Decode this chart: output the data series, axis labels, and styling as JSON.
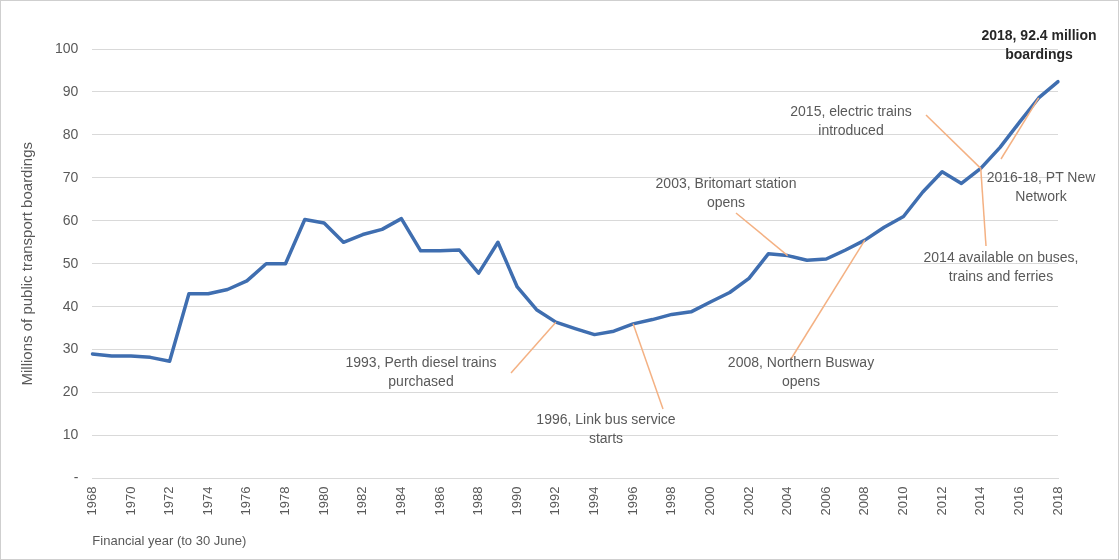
{
  "chart_data": {
    "type": "line",
    "ylabel": "Millions of public transport boardings",
    "xlabel": "Financial year (to 30 June)",
    "categories": [
      "1968",
      null,
      "1970",
      null,
      "1972",
      null,
      "1974",
      null,
      "1976",
      null,
      "1978",
      null,
      "1980",
      null,
      "1982",
      null,
      "1984",
      null,
      "1986",
      null,
      "1988",
      null,
      "1990",
      null,
      "1992",
      null,
      "1994",
      null,
      "1996",
      null,
      "1998",
      null,
      "2000",
      null,
      "2002",
      null,
      "2004",
      null,
      "2006",
      null,
      "2008",
      null,
      "2010",
      null,
      "2012",
      null,
      "2014",
      null,
      "2016",
      null,
      "2018"
    ],
    "series": [
      {
        "color": "#3f6eb0",
        "values": [
          29,
          28.5,
          28.5,
          28.2,
          27.3,
          43,
          43,
          44,
          46,
          50,
          50,
          60.3,
          59.5,
          55,
          56.8,
          58,
          60.5,
          53,
          53,
          53.2,
          47.8,
          55,
          44.6,
          39.3,
          36.4,
          34.9,
          33.5,
          34.3,
          36,
          37,
          38.2,
          38.8,
          41.1,
          43.3,
          46.6,
          52.3,
          51.9,
          50.8,
          51.1,
          53.2,
          55.5,
          58.5,
          61,
          66.7,
          71.4,
          68.7,
          72.2,
          77.1,
          82.9,
          88.6,
          92.4
        ]
      }
    ],
    "ylim": [
      0,
      100
    ],
    "yticks": [
      {
        "value": 0,
        "label": "-"
      },
      10,
      20,
      30,
      40,
      50,
      60,
      70,
      80,
      90,
      100
    ],
    "grid": "y",
    "legend": false,
    "marker": "none",
    "line_style": "solid",
    "annotations": [
      {
        "text": "2018, 92.4 million boardings",
        "x": "2018",
        "y": 92.4
      },
      {
        "text": "2015, electric trains introduced",
        "x": "2014",
        "y": 72.2
      },
      {
        "text": "2016-18, PT New Network",
        "y": 88.6
      },
      {
        "text": "2003, Britomart station opens",
        "x": "2004",
        "y": 51.9
      },
      {
        "text": "2014 available on buses, trains and ferries",
        "x": "2014",
        "y": 72.2
      },
      {
        "text": "2008, Northern Busway opens",
        "x": "2008",
        "y": 55.5
      },
      {
        "text": "1993, Perth diesel trains purchased",
        "x": "1992",
        "y": 36.4
      },
      {
        "text": "1996, Link bus service starts",
        "x": "1996",
        "y": 36
      }
    ]
  }
}
